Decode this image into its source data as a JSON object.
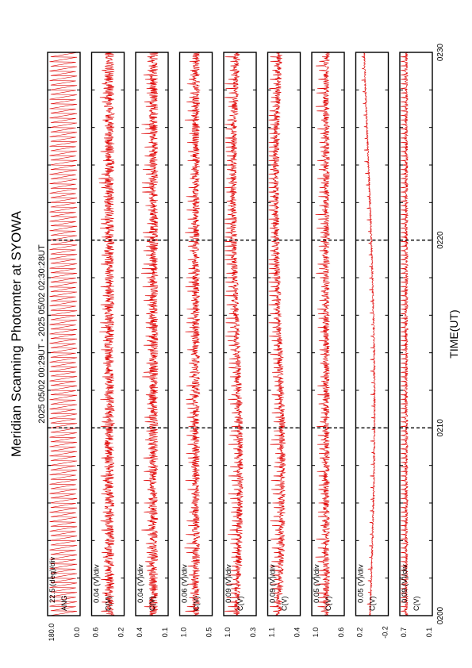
{
  "title": "Meridian Scanning Photomter at SYOWA",
  "time_range": "2025 05/02 00:29UT - 2025 05/02 02:30:28UT",
  "colors": {
    "trace": "#e00000",
    "frame": "#000000",
    "background": "#ffffff"
  },
  "chart_data": {
    "type": "line",
    "orientation": "rotated-90-ccw",
    "xlabel": "TIME(UT)",
    "x_ticks": [
      "0200",
      "0210",
      "0220",
      "0230"
    ],
    "xlim": [
      "0200",
      "0230"
    ],
    "grid": "dashed major lines at 0210 and 0220",
    "panels": [
      {
        "scale": "22.5 (deg)/div",
        "unit": "ANG",
        "y_ticks": [
          "0.0",
          "180.0"
        ],
        "ylim": [
          0,
          180
        ],
        "pattern": "sawtooth",
        "base": 0.5,
        "amp": 0.45,
        "spike": 0,
        "drift": 0
      },
      {
        "scale": "0.04 (V)/div",
        "unit": "C(V)",
        "y_ticks": [
          "0.2",
          "0.6"
        ],
        "ylim": [
          0.2,
          0.6
        ],
        "pattern": "noise",
        "base": 0.55,
        "amp": 0.15,
        "spike": 0.2,
        "drift": 0
      },
      {
        "scale": "0.04 (V)/div",
        "unit": "C(V)",
        "y_ticks": [
          "0.1",
          "0.4"
        ],
        "ylim": [
          0.1,
          0.4
        ],
        "pattern": "noise",
        "base": 0.55,
        "amp": 0.14,
        "spike": 0.25,
        "drift": 0
      },
      {
        "scale": "0.06 (V)/div",
        "unit": "C(V)",
        "y_ticks": [
          "0.5",
          "1.0"
        ],
        "ylim": [
          0.5,
          1.0
        ],
        "pattern": "noise",
        "base": 0.5,
        "amp": 0.12,
        "spike": 0.25,
        "drift": 0
      },
      {
        "scale": "0.09 (V)/div",
        "unit": "C(V)",
        "y_ticks": [
          "0.3",
          "1.0"
        ],
        "ylim": [
          0.3,
          1.0
        ],
        "pattern": "noise",
        "base": 0.4,
        "amp": 0.1,
        "spike": 0.3,
        "drift": 0.1
      },
      {
        "scale": "0.09 (V)/div",
        "unit": "C(V)",
        "y_ticks": [
          "0.4",
          "1.1"
        ],
        "ylim": [
          0.4,
          1.1
        ],
        "pattern": "noise",
        "base": 0.35,
        "amp": 0.1,
        "spike": 0.3,
        "drift": 0.1
      },
      {
        "scale": "0.05 (V)/div",
        "unit": "C(V)",
        "y_ticks": [
          "0.6",
          "1.0"
        ],
        "ylim": [
          0.6,
          1.0
        ],
        "pattern": "noise",
        "base": 0.45,
        "amp": 0.1,
        "spike": 0.25,
        "drift": 0
      },
      {
        "scale": "0.05 (V)/div",
        "unit": "C(V)",
        "y_ticks": [
          "-0.2",
          "0.2"
        ],
        "ylim": [
          -0.2,
          0.2
        ],
        "pattern": "smooth",
        "base": 0.45,
        "amp": 0.05,
        "spike": 0.05,
        "drift": 0.25
      },
      {
        "scale": "0.09 (V)/div",
        "unit": "C(V)",
        "y_ticks": [
          "0.1",
          "0.7"
        ],
        "ylim": [
          0.1,
          0.7
        ],
        "pattern": "spiky",
        "base": 0.2,
        "amp": 0.05,
        "spike": 0.55,
        "drift": 0
      }
    ]
  }
}
